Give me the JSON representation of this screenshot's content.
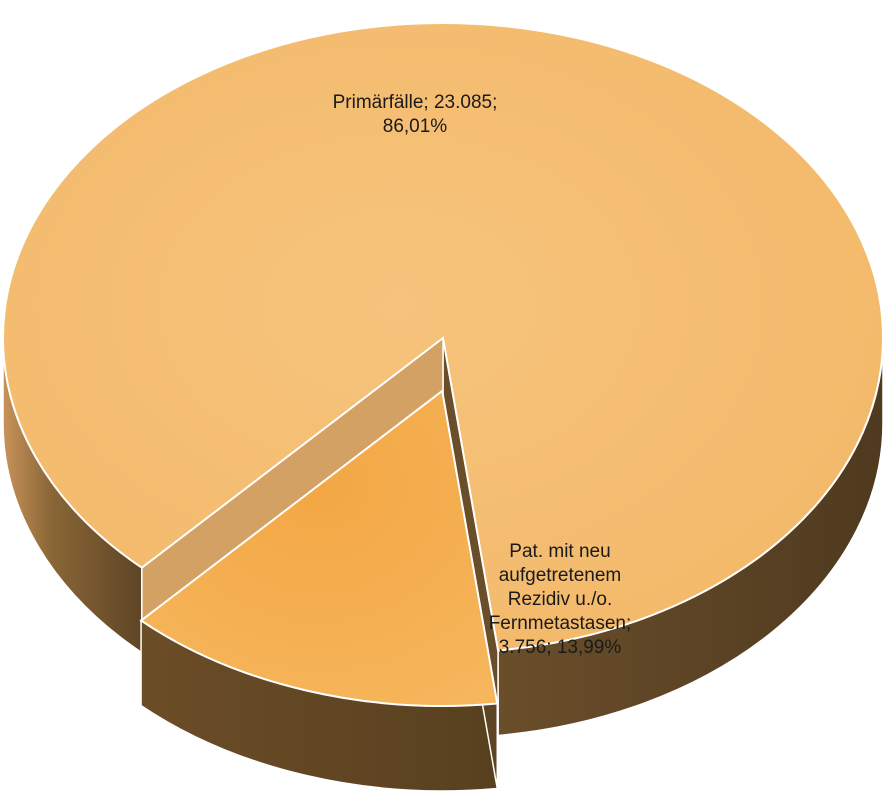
{
  "chart_data": {
    "type": "pie",
    "style": "3d-exploded",
    "slices": [
      {
        "label": "Primärfälle",
        "value": 23085,
        "percent": 86.01,
        "display_label": "Primärfälle; 23.085;\n86,01%",
        "color_top": "#F4BC6E",
        "color_side_light": "#C8935A",
        "color_side_dark": "#5E4525"
      },
      {
        "label": "Pat. mit neu aufgetretenem Rezidiv u./o. Fernmetastasen",
        "value": 3756,
        "percent": 13.99,
        "display_label": "Pat. mit neu\naufgetretenem\nRezidiv u./o.\nFernmetastasen;\n3.756; 13,99%",
        "color_top": "#F5AE4E",
        "color_side_light": "#B88540",
        "color_side_dark": "#5C4322"
      }
    ]
  }
}
